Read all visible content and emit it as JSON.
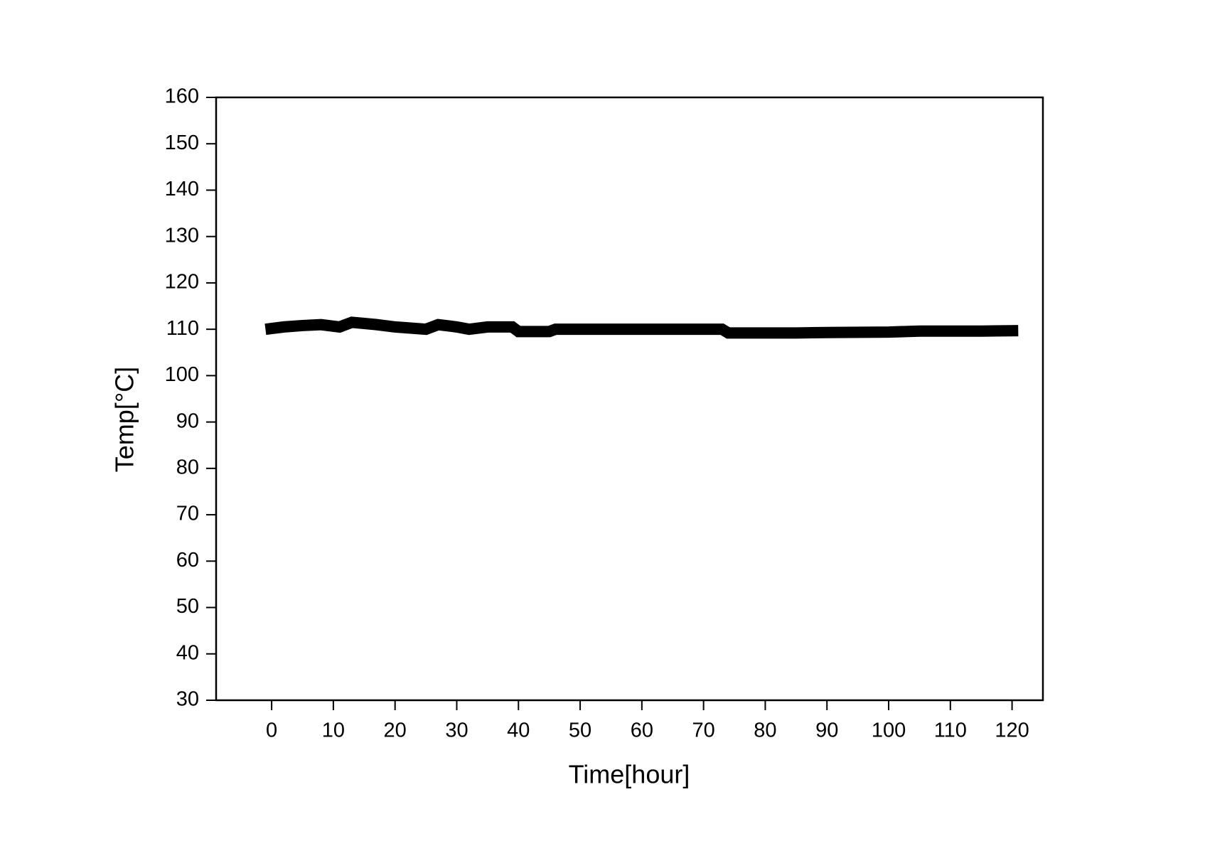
{
  "chart_data": {
    "type": "line",
    "x_label": "Time[hour]",
    "y_label": "Temp[°C]",
    "series": [
      {
        "name": "Temp",
        "color": "#000000",
        "x": [
          -1,
          2,
          5,
          8,
          11,
          13,
          17,
          20,
          25,
          27,
          30,
          32,
          35,
          39,
          40,
          45,
          46,
          55,
          65,
          73,
          74,
          85,
          90,
          100,
          105,
          115,
          121
        ],
        "values": [
          110,
          110.5,
          110.8,
          111,
          110.5,
          111.5,
          111,
          110.5,
          110,
          111,
          110.5,
          110,
          110.5,
          110.5,
          109.5,
          109.5,
          110,
          110,
          110,
          110,
          109.2,
          109.2,
          109.3,
          109.4,
          109.6,
          109.6,
          109.7
        ]
      }
    ],
    "xlim": [
      -9,
      125
    ],
    "ylim": [
      30,
      160
    ],
    "xticks": [
      0,
      10,
      20,
      30,
      40,
      50,
      60,
      70,
      80,
      90,
      100,
      110,
      120
    ],
    "yticks": [
      30,
      40,
      50,
      60,
      70,
      80,
      90,
      100,
      110,
      120,
      130,
      140,
      150,
      160
    ]
  }
}
